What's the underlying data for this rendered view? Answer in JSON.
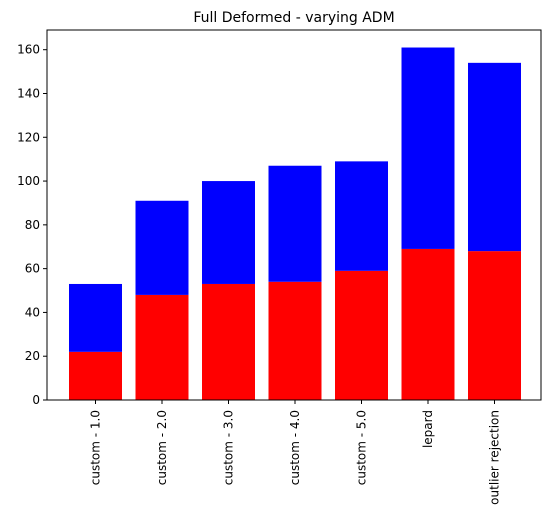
{
  "chart_data": {
    "type": "bar",
    "stacked": true,
    "title": "Full Deformed - varying ADM",
    "xlabel": "",
    "ylabel": "",
    "categories": [
      "custom - 1.0",
      "custom - 2.0",
      "custom - 3.0",
      "custom - 4.0",
      "custom - 5.0",
      "lepard",
      "outlier rejection"
    ],
    "series": [
      {
        "values": [
          22,
          48,
          53,
          54,
          59,
          69,
          68
        ],
        "color": "#ff0000"
      },
      {
        "values": [
          31,
          43,
          47,
          53,
          50,
          92,
          86
        ],
        "color": "#0000ff"
      }
    ],
    "ylim": [
      0,
      169
    ],
    "yticks": [
      0,
      20,
      40,
      60,
      80,
      100,
      120,
      140,
      160
    ],
    "grid": false,
    "legend": "none"
  }
}
